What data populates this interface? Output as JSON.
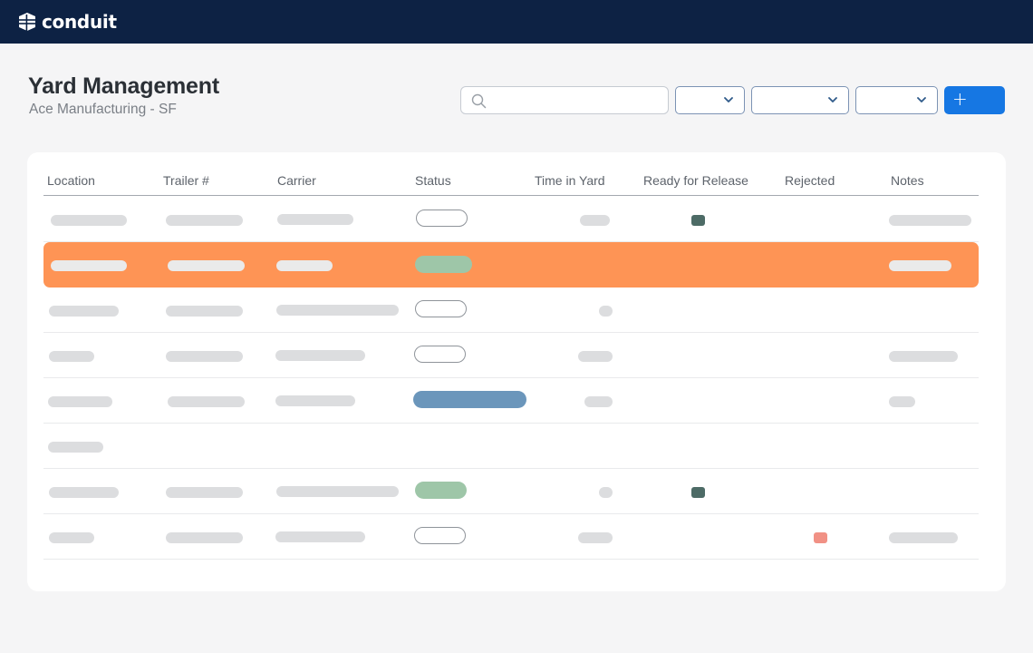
{
  "app": {
    "brand": "conduit"
  },
  "page": {
    "title": "Yard Management",
    "subtitle": "Ace Manufacturing - SF"
  },
  "toolbar": {
    "search": {
      "value": "",
      "placeholder": ""
    },
    "filters": [
      {
        "value": ""
      },
      {
        "value": ""
      },
      {
        "value": ""
      }
    ],
    "add_label": "+"
  },
  "table": {
    "columns": [
      "Location",
      "Trailer #",
      "Carrier",
      "Status",
      "Time in Yard",
      "Ready for Release",
      "Rejected",
      "Notes"
    ],
    "rows": [
      {
        "status_badge": "outline",
        "ready_for_release": true,
        "rejected": false,
        "selected": false
      },
      {
        "status_badge": "green",
        "ready_for_release": false,
        "rejected": false,
        "selected": true
      },
      {
        "status_badge": "outline",
        "ready_for_release": false,
        "rejected": false,
        "selected": false
      },
      {
        "status_badge": "outline",
        "ready_for_release": false,
        "rejected": false,
        "selected": false
      },
      {
        "status_badge": "blue",
        "ready_for_release": false,
        "rejected": false,
        "selected": false
      },
      {
        "status_badge": "none",
        "ready_for_release": false,
        "rejected": false,
        "selected": false
      },
      {
        "status_badge": "green",
        "ready_for_release": true,
        "rejected": false,
        "selected": false
      },
      {
        "status_badge": "outline",
        "ready_for_release": false,
        "rejected": true,
        "selected": false
      }
    ]
  },
  "colors": {
    "topbar": "#0d2244",
    "accent_button": "#1677e3",
    "row_highlight": "#fe9455",
    "status_green": "#9ec6a8",
    "status_blue": "#6b96bb",
    "ready_marker": "#4d6b66",
    "rejected_marker": "#f19185"
  },
  "icons": [
    "conduit-logo-icon",
    "search-icon",
    "chevron-down-icon",
    "plus-icon"
  ]
}
